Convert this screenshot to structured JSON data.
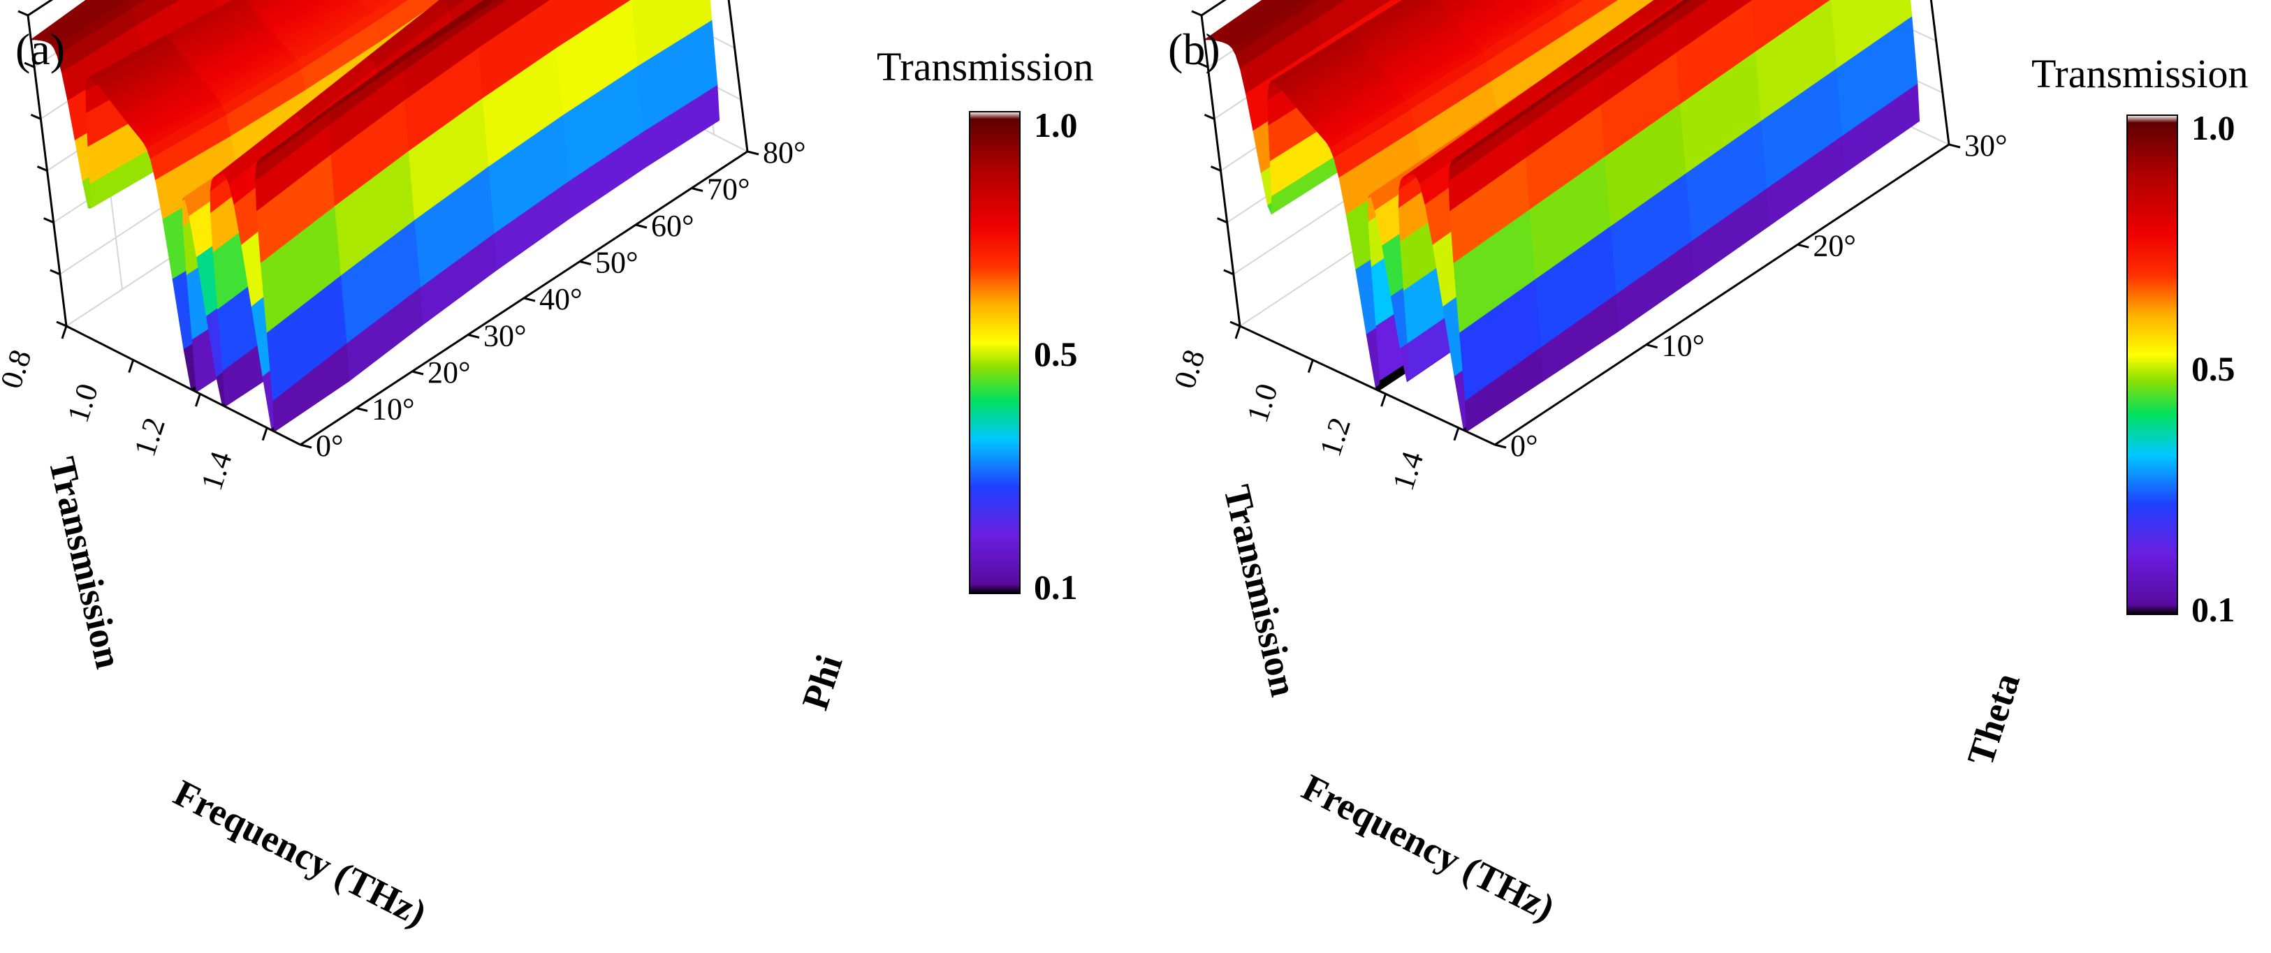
{
  "chart_data": [
    {
      "type": "surface3d",
      "panel_label": "(a)",
      "xlabel": "Frequency (THz)",
      "ylabel": "Phi",
      "zlabel": "Transmission",
      "x_ticks": [
        "0.8",
        "1.0",
        "1.2",
        "1.4"
      ],
      "y_ticks": [
        "0°",
        "10°",
        "20°",
        "30°",
        "40°",
        "50°",
        "60°",
        "70°",
        "80°"
      ],
      "xlim": [
        0.8,
        1.5
      ],
      "ylim": [
        0,
        80
      ],
      "zlim": [
        0.1,
        1.0
      ],
      "resonances": [
        {
          "frequency": 0.92,
          "min_transmission": 0.45
        },
        {
          "frequency": 1.18,
          "min_transmission": 0.14
        },
        {
          "frequency": 1.27,
          "min_transmission": 0.2
        },
        {
          "frequency": 1.42,
          "min_transmission": 0.1
        }
      ],
      "colorbar": {
        "title": "Transmission",
        "ticks": [
          "1.0",
          "0.5",
          "0.1"
        ],
        "range": [
          0.1,
          1.0
        ]
      }
    },
    {
      "type": "surface3d",
      "panel_label": "(b)",
      "xlabel": "Frequency (THz)",
      "ylabel": "Theta",
      "zlabel": "Transmission",
      "x_ticks": [
        "0.8",
        "1.0",
        "1.2",
        "1.4"
      ],
      "y_ticks": [
        "0°",
        "10°",
        "20°",
        "30°"
      ],
      "xlim": [
        0.8,
        1.5
      ],
      "ylim": [
        0,
        30
      ],
      "zlim": [
        0.1,
        1.0
      ],
      "resonances": [
        {
          "frequency": 0.93,
          "min_transmission": 0.45
        },
        {
          "frequency": 1.18,
          "min_transmission": 0.2
        },
        {
          "frequency": 1.27,
          "min_transmission": 0.3
        },
        {
          "frequency": 1.42,
          "min_transmission": 0.1
        }
      ],
      "colorbar": {
        "title": "Transmission",
        "ticks": [
          "1.0",
          "0.5",
          "0.1"
        ],
        "range": [
          0.1,
          1.0
        ]
      }
    }
  ]
}
